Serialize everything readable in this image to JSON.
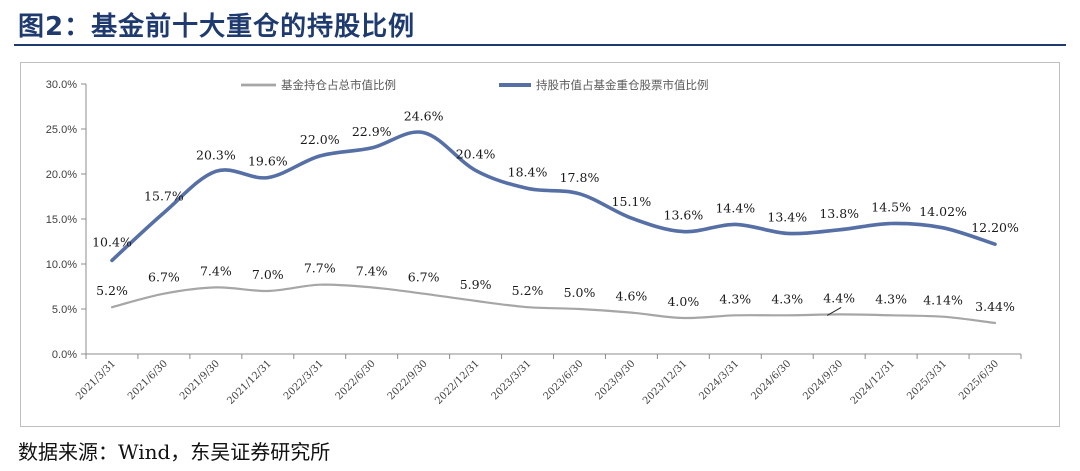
{
  "figure": {
    "title": "图2：基金前十大重仓的持股比例",
    "source": "数据来源：Wind，东吴证券研究所"
  },
  "chart_data": {
    "type": "line",
    "title": "",
    "xlabel": "",
    "ylabel": "",
    "ylim": [
      0,
      30
    ],
    "y_ticks": [
      "0.0%",
      "5.0%",
      "10.0%",
      "15.0%",
      "20.0%",
      "25.0%",
      "30.0%"
    ],
    "y_tick_values": [
      0,
      5,
      10,
      15,
      20,
      25,
      30
    ],
    "legend_position": "top",
    "grid": false,
    "categories": [
      "2021/3/31",
      "2021/6/30",
      "2021/9/30",
      "2021/12/31",
      "2022/3/31",
      "2022/6/30",
      "2022/9/30",
      "2022/12/31",
      "2023/3/31",
      "2023/6/30",
      "2023/9/30",
      "2023/12/31",
      "2024/3/31",
      "2024/6/30",
      "2024/9/30",
      "2024/12/31",
      "2025/3/31",
      "2025/6/30"
    ],
    "series": [
      {
        "name": "基金持仓占总市值比例",
        "color": "#a6a6a6",
        "values": [
          5.2,
          6.7,
          7.4,
          7.0,
          7.7,
          7.4,
          6.7,
          5.9,
          5.2,
          5.0,
          4.6,
          4.0,
          4.3,
          4.3,
          4.4,
          4.3,
          4.14,
          3.44
        ],
        "labels": [
          "5.2%",
          "6.7%",
          "7.4%",
          "7.0%",
          "7.7%",
          "7.4%",
          "6.7%",
          "5.9%",
          "5.2%",
          "5.0%",
          "4.6%",
          "4.0%",
          "4.3%",
          "4.3%",
          "4.4%",
          "4.3%",
          "4.14%",
          "3.44%"
        ]
      },
      {
        "name": "持股市值占基金重仓股票市值比例",
        "color": "#5670a6",
        "values": [
          10.4,
          15.7,
          20.3,
          19.6,
          22.0,
          22.9,
          24.6,
          20.4,
          18.4,
          17.8,
          15.1,
          13.6,
          14.4,
          13.4,
          13.8,
          14.5,
          14.02,
          12.2
        ],
        "labels": [
          "10.4%",
          "15.7%",
          "20.3%",
          "19.6%",
          "22.0%",
          "22.9%",
          "24.6%",
          "20.4%",
          "18.4%",
          "17.8%",
          "15.1%",
          "13.6%",
          "14.4%",
          "13.4%",
          "13.8%",
          "14.5%",
          "14.02%",
          "12.20%"
        ]
      }
    ]
  }
}
